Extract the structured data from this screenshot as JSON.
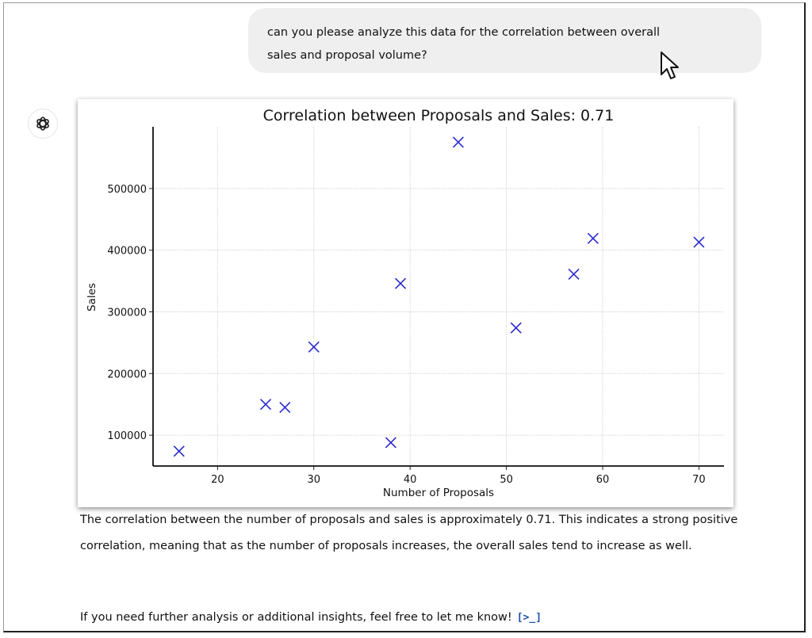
{
  "user_message": {
    "line1": "can you please analyze this data for the correlation between overall",
    "line2": "sales and proposal volume?"
  },
  "assistant": {
    "avatar_icon": "openai-logo-icon",
    "paragraph1": "The correlation between the number of proposals and sales is approximately 0.71. This indicates a strong positive correlation, meaning that as the number of proposals increases, the overall sales tend to increase as well.",
    "paragraph2": "If you need further analysis or additional insights, feel free to let me know!",
    "code_icon": "[>_]"
  },
  "chart_data": {
    "type": "scatter",
    "title": "Correlation between Proposals and Sales: 0.71",
    "xlabel": "Number of Proposals",
    "ylabel": "Sales",
    "xlim": [
      13.3,
      72.6
    ],
    "ylim": [
      50000,
      600000
    ],
    "xticks": [
      20,
      30,
      40,
      50,
      60,
      70
    ],
    "yticks": [
      100000,
      200000,
      300000,
      400000,
      500000
    ],
    "grid": true,
    "marker": "x",
    "color": "#2a2ad0",
    "points": [
      {
        "x": 16,
        "y": 74000
      },
      {
        "x": 25,
        "y": 150000
      },
      {
        "x": 27,
        "y": 145000
      },
      {
        "x": 30,
        "y": 243000
      },
      {
        "x": 38,
        "y": 88000
      },
      {
        "x": 39,
        "y": 346000
      },
      {
        "x": 45,
        "y": 575000
      },
      {
        "x": 51,
        "y": 274000
      },
      {
        "x": 57,
        "y": 361000
      },
      {
        "x": 59,
        "y": 419000
      },
      {
        "x": 70,
        "y": 413000
      }
    ]
  }
}
